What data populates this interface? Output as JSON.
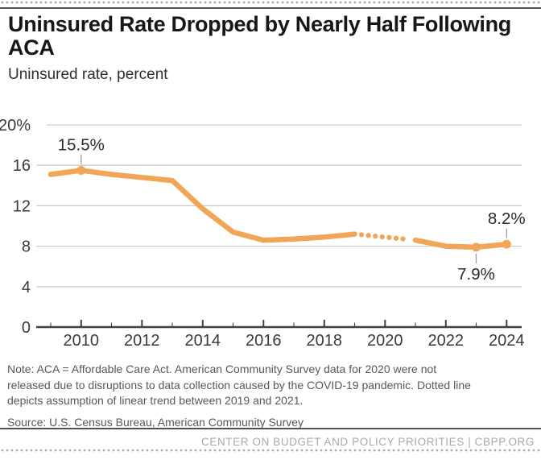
{
  "header": {
    "title": "Uninsured Rate Dropped by Nearly Half Following ACA",
    "subtitle": "Uninsured rate, percent"
  },
  "chart_data": {
    "type": "line",
    "title": "Uninsured Rate Dropped by Nearly Half Following ACA",
    "ylabel": "Uninsured rate, percent",
    "xlabel": "",
    "x": [
      2009,
      2010,
      2011,
      2012,
      2013,
      2014,
      2015,
      2016,
      2017,
      2018,
      2019,
      2020,
      2021,
      2022,
      2023,
      2024
    ],
    "series": [
      {
        "name": "Uninsured rate, percent",
        "values": [
          15.1,
          15.5,
          15.1,
          14.8,
          14.5,
          11.7,
          9.4,
          8.6,
          8.7,
          8.9,
          9.2,
          null,
          8.6,
          8.0,
          7.9,
          8.2
        ]
      }
    ],
    "dotted_segment": {
      "from": 2019,
      "to": 2021,
      "meaning": "Dotted line depicts assumption of linear trend between 2019 and 2021; 2020 ACS data not released"
    },
    "point_labels": [
      {
        "x": 2010,
        "value": 15.5,
        "label": "15.5%",
        "position": "above"
      },
      {
        "x": 2023,
        "value": 7.9,
        "label": "7.9%",
        "position": "below"
      },
      {
        "x": 2024,
        "value": 8.2,
        "label": "8.2%",
        "position": "above"
      }
    ],
    "ylim": [
      0,
      20
    ],
    "y_ticks": [
      0,
      4,
      8,
      12,
      16,
      20
    ],
    "y_tick_labels": [
      "0",
      "4",
      "8",
      "12",
      "16",
      "20%"
    ],
    "x_major_ticks": [
      2010,
      2012,
      2014,
      2016,
      2018,
      2020,
      2022,
      2024
    ],
    "x_tick_labels": [
      "2010",
      "2012",
      "2014",
      "2016",
      "2018",
      "2020",
      "2022",
      "2024"
    ],
    "grid": true,
    "legend": "none",
    "colors": {
      "line": "#F0A557",
      "grid": "#CCCCCC",
      "axis": "#414042",
      "tick_label": "#3A3A3C",
      "data_label": "#2B2B2B",
      "callout": "#9B9B9D"
    }
  },
  "note": {
    "lines": [
      "Note: ACA = Affordable Care Act. American Community Survey data for 2020 were not",
      "released due to disruptions to data collection caused by the COVID-19 pandemic. Dotted line",
      "depicts assumption of linear trend between 2019 and 2021."
    ],
    "source": "Source: U.S. Census Bureau, American Community Survey"
  },
  "footer": {
    "text": "CENTER ON BUDGET AND POLICY PRIORITIES | CBPP.ORG"
  }
}
